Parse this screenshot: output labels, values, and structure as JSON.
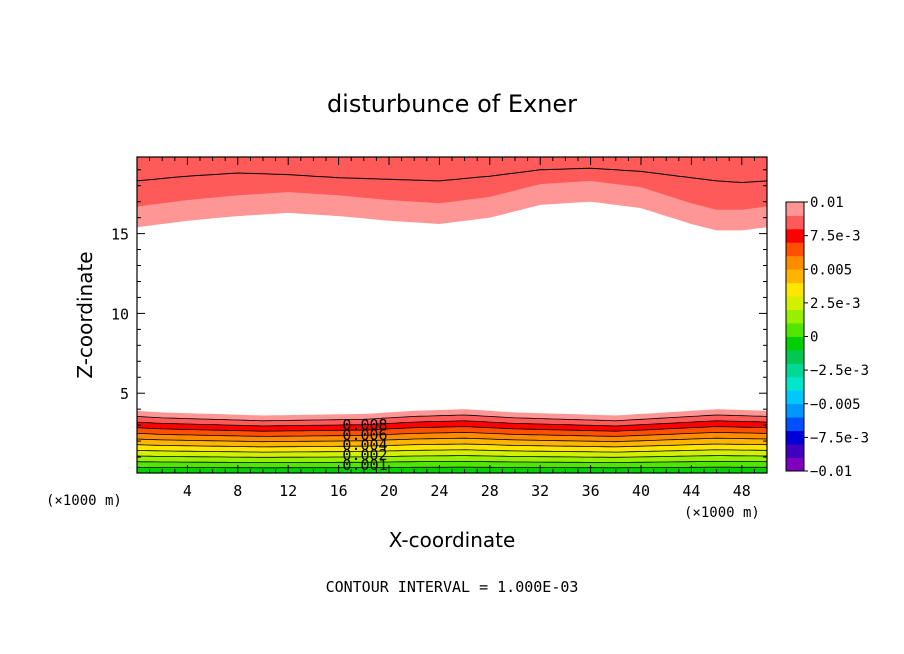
{
  "chart_data": {
    "type": "contour",
    "title": "disturbunce of Exner",
    "xlabel": "X-coordinate",
    "ylabel": "Z-coordinate",
    "x_unit_label": "(×1000 m)",
    "y_unit_label": "(×1000 m)",
    "xlim": [
      0,
      50
    ],
    "ylim": [
      0,
      19.8
    ],
    "x_ticks": [
      "4",
      "8",
      "12",
      "16",
      "20",
      "24",
      "28",
      "32",
      "36",
      "40",
      "44",
      "48"
    ],
    "y_ticks": [
      "5",
      "10",
      "15"
    ],
    "contour_labels": [
      "0.008",
      "0.006",
      "0.004",
      "0.002",
      "0.001"
    ],
    "footer": "CONTOUR INTERVAL = 1.000E-03",
    "colorbar": {
      "labels": [
        "0.01",
        "7.5e-3",
        "0.005",
        "2.5e-3",
        "0",
        "−2.5e-3",
        "−0.005",
        "−7.5e-3",
        "−0.01"
      ],
      "colors": [
        "#7f00bf",
        "#3f00bf",
        "#0000d8",
        "#0050ff",
        "#0096ff",
        "#00c8ff",
        "#00e6c8",
        "#00d896",
        "#00c850",
        "#00d000",
        "#50e600",
        "#96f000",
        "#d2f000",
        "#ffe600",
        "#ffb400",
        "#ff8c00",
        "#ff5000",
        "#ff0000",
        "#ff5a5a",
        "#ff9696"
      ]
    },
    "bottom_band": {
      "top_height_profile_x": [
        0,
        2,
        6,
        10,
        14,
        18,
        22,
        26,
        30,
        34,
        38,
        42,
        46,
        50
      ],
      "top_height_profile_z": [
        3.9,
        3.8,
        3.7,
        3.6,
        3.65,
        3.7,
        3.9,
        4.0,
        3.8,
        3.7,
        3.6,
        3.8,
        4.0,
        3.9
      ],
      "fill_colors": [
        "#ff9696",
        "#ff5a5a",
        "#ff0000",
        "#ff5000",
        "#ff8c00",
        "#ffb400",
        "#ffe600",
        "#d2f000",
        "#96f000",
        "#50e600",
        "#00d000"
      ]
    },
    "top_band": {
      "bottom_height_profile_x": [
        0,
        4,
        8,
        12,
        16,
        20,
        24,
        28,
        32,
        36,
        40,
        44,
        46,
        48,
        50
      ],
      "bottom_height_profile_z": [
        15.4,
        15.8,
        16.1,
        16.3,
        16.1,
        15.8,
        15.6,
        16.0,
        16.8,
        17.0,
        16.6,
        15.6,
        15.2,
        15.2,
        15.4
      ],
      "fill_colors": [
        "#ff9696",
        "#ff5a5a"
      ],
      "line_z": [
        18.3,
        18.6,
        18.8,
        18.7,
        18.5,
        18.4,
        18.3,
        18.6,
        19.0,
        19.1,
        18.9,
        18.5,
        18.3,
        18.2,
        18.3
      ]
    }
  }
}
